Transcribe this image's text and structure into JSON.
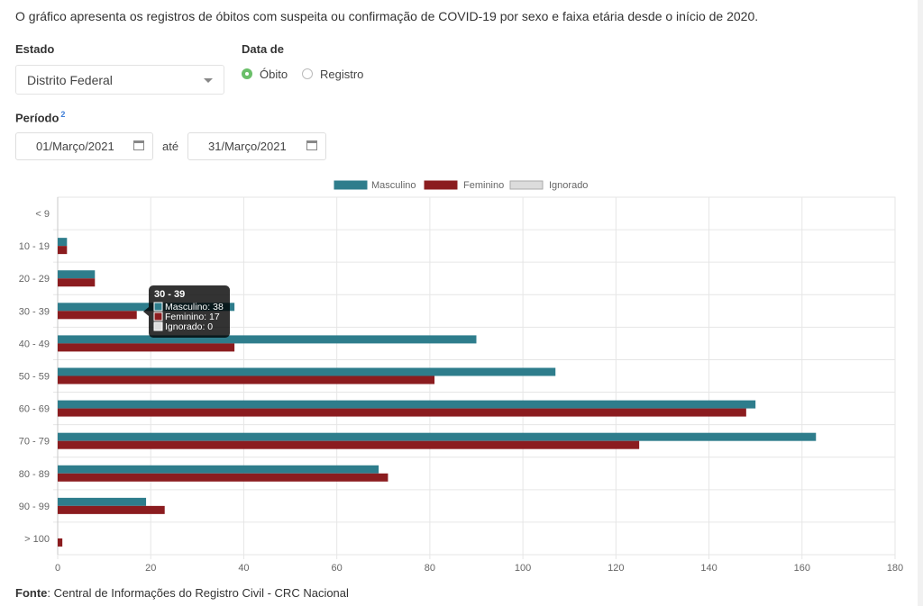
{
  "description": "O gráfico apresenta os registros de óbitos com suspeita ou confirmação de COVID-19 por sexo e faixa etária desde o início de 2020.",
  "filters": {
    "estado_label": "Estado",
    "estado_value": "Distrito Federal",
    "data_de_label": "Data de",
    "radio_obito": "Óbito",
    "radio_registro": "Registro",
    "periodo_label": "Período",
    "periodo_sup": "2",
    "date_from": "01/Março/2021",
    "date_until_label": "até",
    "date_to": "31/Março/2021"
  },
  "colors": {
    "masculino": "#2e7d8c",
    "feminino": "#8b1c1f",
    "ignorado": "#dcdcdc",
    "radio_checked": "#6abf69"
  },
  "icons": {
    "select": "chevron-down-icon",
    "date": "calendar-icon"
  },
  "chart_data": {
    "type": "bar",
    "orientation": "horizontal",
    "categories": [
      "< 9",
      "10 - 19",
      "20 - 29",
      "30 - 39",
      "40 - 49",
      "50 - 59",
      "60 - 69",
      "70 - 79",
      "80 - 89",
      "90 - 99",
      "> 100"
    ],
    "series": [
      {
        "name": "Masculino",
        "values": [
          0,
          2,
          8,
          38,
          90,
          107,
          150,
          163,
          69,
          19,
          0
        ]
      },
      {
        "name": "Feminino",
        "values": [
          0,
          2,
          8,
          17,
          38,
          81,
          148,
          125,
          71,
          23,
          1
        ]
      },
      {
        "name": "Ignorado",
        "values": [
          0,
          0,
          0,
          0,
          0,
          0,
          0,
          0,
          0,
          0,
          0
        ]
      }
    ],
    "xlim": [
      0,
      180
    ],
    "xticks": [
      0,
      20,
      40,
      60,
      80,
      100,
      120,
      140,
      160,
      180
    ],
    "grid": true,
    "legend_position": "top",
    "tooltip": {
      "title": "30 - 39",
      "lines": [
        "Masculino: 38",
        "Feminino: 17",
        "Ignorado: 0"
      ]
    }
  },
  "footer": {
    "source_label": "Fonte",
    "source_text": ": Central de Informações do Registro Civil - CRC Nacional"
  }
}
